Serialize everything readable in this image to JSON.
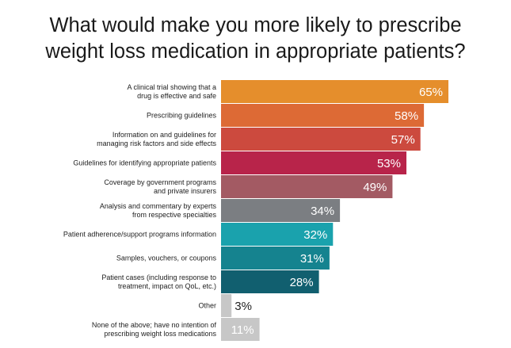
{
  "title_lines": [
    "What would make you more likely to prescribe",
    "weight loss medication in appropriate patients?"
  ],
  "chart_data": {
    "type": "bar",
    "orientation": "horizontal",
    "title": "What would make you more likely to prescribe weight loss medication in appropriate patients?",
    "categories": [
      [
        "A clinical trial showing that a",
        "drug is effective and safe"
      ],
      [
        "Prescribing guidelines"
      ],
      [
        "Information on and guidelines for",
        "managing risk factors and side effects"
      ],
      [
        "Guidelines for identifying appropriate patients"
      ],
      [
        "Coverage by government programs",
        "and private insurers"
      ],
      [
        "Analysis and commentary by experts",
        "from respective specialties"
      ],
      [
        "Patient adherence/support programs information"
      ],
      [
        "Samples, vouchers, or coupons"
      ],
      [
        "Patient cases (including response to",
        "treatment, impact on QoL, etc.)"
      ],
      [
        "Other"
      ],
      [
        "None of the above; have no intention of",
        "prescribing weight loss medications"
      ]
    ],
    "values": [
      65,
      58,
      57,
      53,
      49,
      34,
      32,
      31,
      28,
      3,
      11
    ],
    "value_labels": [
      "65%",
      "58%",
      "57%",
      "53%",
      "49%",
      "34%",
      "32%",
      "31%",
      "28%",
      "3%",
      "11%"
    ],
    "colors": [
      "#e58e2c",
      "#dd6a35",
      "#cc4a3e",
      "#b8244a",
      "#a35a63",
      "#7b7e82",
      "#1aa2ad",
      "#15838f",
      "#115f6f",
      "#c7c7c7",
      "#c7c7c7"
    ],
    "label_colors": [
      "#ffffff",
      "#ffffff",
      "#ffffff",
      "#ffffff",
      "#ffffff",
      "#ffffff",
      "#ffffff",
      "#ffffff",
      "#ffffff",
      "#222222",
      "#ffffff"
    ],
    "xlim": [
      0,
      100
    ],
    "grid": false,
    "legend": "none"
  }
}
